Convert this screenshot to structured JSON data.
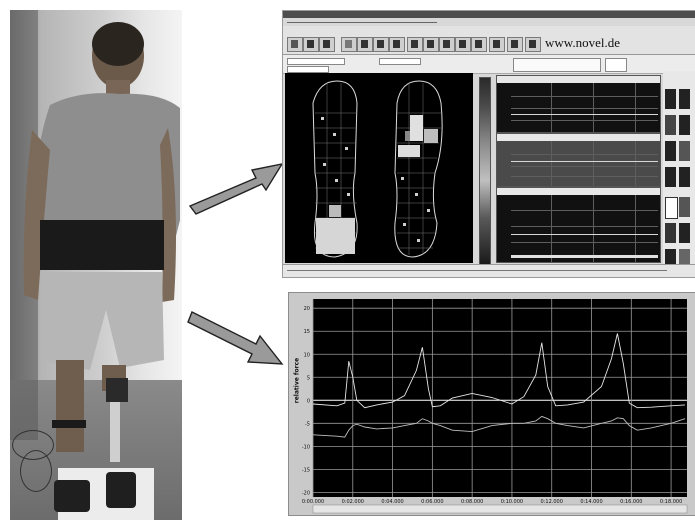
{
  "top_window": {
    "url_text": "www.novel.de"
  },
  "chart": {
    "ylabel": "relative force",
    "x_ticks": [
      "0:00.000",
      "0:02.000",
      "0:04.000",
      "0:06.000",
      "0:08.000",
      "0:10.000",
      "0:12.000",
      "0:14.000",
      "0:16.000",
      "0:18.000"
    ],
    "y_ticks": [
      "20",
      "15",
      "10",
      "5",
      "0",
      "-5",
      "-10",
      "-15",
      "-20"
    ]
  },
  "chart_data": {
    "type": "line",
    "x": [
      0.0,
      1.2,
      1.6,
      1.8,
      2.0,
      2.2,
      2.6,
      3.2,
      4.0,
      4.6,
      5.2,
      5.5,
      5.8,
      6.0,
      6.4,
      7.0,
      8.0,
      9.0,
      10.0,
      10.6,
      11.2,
      11.5,
      11.8,
      12.2,
      12.8,
      13.6,
      14.5,
      15.0,
      15.3,
      15.6,
      15.9,
      16.3,
      17.0,
      18.0,
      18.7
    ],
    "series": [
      {
        "values": [
          -0.8,
          -1.2,
          -0.6,
          8.5,
          5.0,
          0.0,
          -1.6,
          -1.0,
          -0.4,
          1.0,
          6.5,
          11.5,
          2.5,
          -1.4,
          -1.2,
          0.5,
          1.5,
          0.6,
          -0.8,
          0.8,
          5.5,
          12.5,
          3.0,
          -1.2,
          -1.0,
          -0.4,
          3.0,
          9.0,
          14.5,
          8.0,
          -0.6,
          -1.6,
          -1.5,
          -1.2,
          -1.0
        ]
      },
      {
        "values": [
          -7.5,
          -7.8,
          -8.0,
          -6.5,
          -5.5,
          -5.2,
          -5.8,
          -6.2,
          -6.0,
          -5.5,
          -5.0,
          -4.0,
          -4.5,
          -5.0,
          -5.5,
          -6.5,
          -6.8,
          -5.5,
          -5.0,
          -5.0,
          -4.5,
          -3.5,
          -4.0,
          -5.0,
          -5.5,
          -6.0,
          -5.0,
          -4.5,
          -3.8,
          -4.0,
          -5.5,
          -6.5,
          -6.0,
          -5.0,
          -4.0
        ]
      }
    ],
    "xlim": [
      0,
      18.8
    ],
    "ylim": [
      -21,
      22
    ],
    "grid": true,
    "colors": {
      "background": "#000000",
      "grid": "#ffffff",
      "line": "#e6e6e6",
      "panel": "#c9c9c9"
    }
  }
}
